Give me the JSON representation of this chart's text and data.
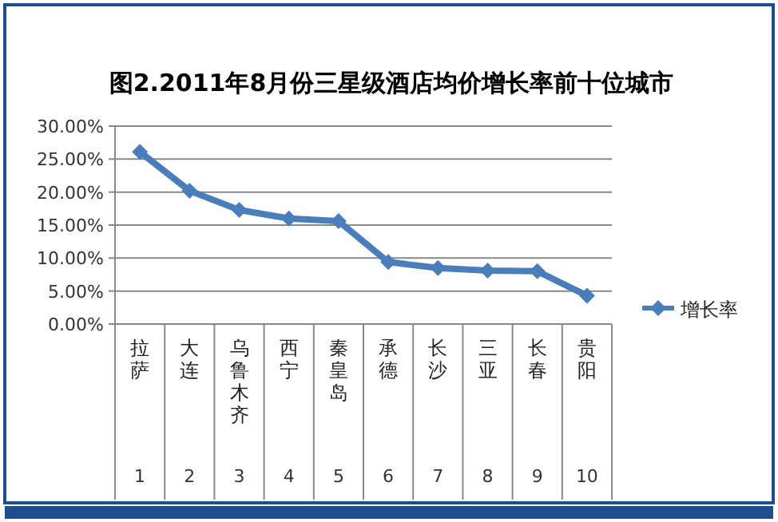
{
  "chart_data": {
    "type": "line",
    "title": "图2.2011年8月份三星级酒店均价增长率前十位城市",
    "categories": [
      "拉萨",
      "大连",
      "乌鲁木齐",
      "西宁",
      "秦皇岛",
      "承德",
      "长沙",
      "三亚",
      "长春",
      "贵阳"
    ],
    "series": [
      {
        "name": "增长率",
        "color": "#4a7ebb",
        "values": [
          26.1,
          20.2,
          17.3,
          16.0,
          15.6,
          9.4,
          8.5,
          8.1,
          8.0,
          4.3
        ]
      }
    ],
    "ylim": [
      0,
      30
    ],
    "yticks": [
      {
        "value": 0,
        "label": "0.00%"
      },
      {
        "value": 5,
        "label": "5.00%"
      },
      {
        "value": 10,
        "label": "10.00%"
      },
      {
        "value": 15,
        "label": "15.00%"
      },
      {
        "value": 20,
        "label": "20.00%"
      },
      {
        "value": 25,
        "label": "25.00%"
      },
      {
        "value": 30,
        "label": "30.00%"
      }
    ],
    "grid": "y",
    "legend": "right",
    "marker": "diamond",
    "line_style": "solid",
    "annotations": [
      "1",
      "2",
      "3",
      "4",
      "5",
      "6",
      "7",
      "8",
      "9",
      "10"
    ]
  }
}
